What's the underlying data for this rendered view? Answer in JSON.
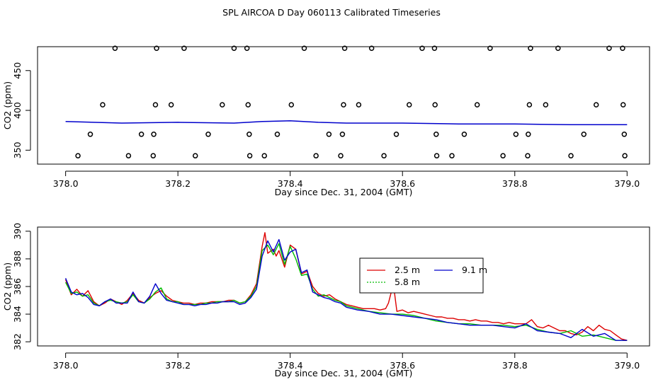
{
  "title": "SPL AIRCOA D  Day 060113  Calibrated Timeseries",
  "chart_data": [
    {
      "type": "scatter",
      "name": "top",
      "xlabel": "Day since Dec. 31, 2004 (GMT)",
      "ylabel": "CO2 (ppm)",
      "xlim": [
        377.95,
        379.04
      ],
      "ylim": [
        332.5,
        480
      ],
      "x_ticks": [
        378.0,
        378.2,
        378.4,
        378.6,
        378.8,
        379.0
      ],
      "x_tick_labels": [
        "378.0",
        "378.2",
        "378.4",
        "378.6",
        "378.8",
        "379.0"
      ],
      "y_ticks": [
        350,
        400,
        450
      ],
      "y_tick_labels": [
        "350",
        "400",
        "450"
      ],
      "calibration_points": [
        {
          "x": 378.088,
          "y": 478
        },
        {
          "x": 378.162,
          "y": 478
        },
        {
          "x": 378.211,
          "y": 478
        },
        {
          "x": 378.3,
          "y": 478
        },
        {
          "x": 378.323,
          "y": 478
        },
        {
          "x": 378.425,
          "y": 478
        },
        {
          "x": 378.497,
          "y": 478
        },
        {
          "x": 378.545,
          "y": 478
        },
        {
          "x": 378.635,
          "y": 478
        },
        {
          "x": 378.657,
          "y": 478
        },
        {
          "x": 378.756,
          "y": 478
        },
        {
          "x": 378.828,
          "y": 478
        },
        {
          "x": 378.877,
          "y": 478
        },
        {
          "x": 378.968,
          "y": 478
        },
        {
          "x": 378.992,
          "y": 478
        },
        {
          "x": 378.066,
          "y": 407
        },
        {
          "x": 378.16,
          "y": 407
        },
        {
          "x": 378.188,
          "y": 407
        },
        {
          "x": 378.279,
          "y": 407
        },
        {
          "x": 378.325,
          "y": 407
        },
        {
          "x": 378.402,
          "y": 407
        },
        {
          "x": 378.495,
          "y": 407
        },
        {
          "x": 378.522,
          "y": 407
        },
        {
          "x": 378.612,
          "y": 407
        },
        {
          "x": 378.658,
          "y": 407
        },
        {
          "x": 378.733,
          "y": 407
        },
        {
          "x": 378.826,
          "y": 407
        },
        {
          "x": 378.855,
          "y": 407
        },
        {
          "x": 378.945,
          "y": 407
        },
        {
          "x": 378.993,
          "y": 407
        },
        {
          "x": 378.044,
          "y": 370
        },
        {
          "x": 378.135,
          "y": 370
        },
        {
          "x": 378.157,
          "y": 370
        },
        {
          "x": 378.254,
          "y": 370
        },
        {
          "x": 378.327,
          "y": 370
        },
        {
          "x": 378.377,
          "y": 370
        },
        {
          "x": 378.469,
          "y": 370
        },
        {
          "x": 378.493,
          "y": 370
        },
        {
          "x": 378.589,
          "y": 370
        },
        {
          "x": 378.66,
          "y": 370
        },
        {
          "x": 378.71,
          "y": 370
        },
        {
          "x": 378.802,
          "y": 370
        },
        {
          "x": 378.824,
          "y": 370
        },
        {
          "x": 378.923,
          "y": 370
        },
        {
          "x": 378.995,
          "y": 370
        },
        {
          "x": 378.022,
          "y": 343
        },
        {
          "x": 378.112,
          "y": 343
        },
        {
          "x": 378.156,
          "y": 343
        },
        {
          "x": 378.231,
          "y": 343
        },
        {
          "x": 378.328,
          "y": 343
        },
        {
          "x": 378.354,
          "y": 343
        },
        {
          "x": 378.446,
          "y": 343
        },
        {
          "x": 378.49,
          "y": 343
        },
        {
          "x": 378.567,
          "y": 343
        },
        {
          "x": 378.661,
          "y": 343
        },
        {
          "x": 378.688,
          "y": 343
        },
        {
          "x": 378.779,
          "y": 343
        },
        {
          "x": 378.823,
          "y": 343
        },
        {
          "x": 378.9,
          "y": 343
        },
        {
          "x": 378.996,
          "y": 343
        }
      ],
      "series": [
        {
          "name": "ambient",
          "color": "#0000cc",
          "x": [
            378.0,
            378.1,
            378.2,
            378.3,
            378.35,
            378.4,
            378.45,
            378.5,
            378.6,
            378.7,
            378.8,
            378.9,
            379.0
          ],
          "y": [
            386,
            384,
            385,
            384,
            386,
            387,
            385,
            384,
            384,
            383,
            383,
            382,
            382
          ]
        }
      ]
    },
    {
      "type": "line",
      "name": "bottom",
      "xlabel": "Day since Dec. 31, 2004 (GMT)",
      "ylabel": "CO2 (ppm)",
      "xlim": [
        377.95,
        379.04
      ],
      "ylim": [
        381.7,
        390.3
      ],
      "x_ticks": [
        378.0,
        378.2,
        378.4,
        378.6,
        378.8,
        379.0
      ],
      "x_tick_labels": [
        "378.0",
        "378.2",
        "378.4",
        "378.6",
        "378.8",
        "379.0"
      ],
      "y_ticks": [
        382,
        384,
        386,
        388,
        390
      ],
      "y_tick_labels": [
        "382",
        "384",
        "386",
        "388",
        "390"
      ],
      "legend": {
        "position": "center-right",
        "entries": [
          {
            "label": "2.5 m",
            "color": "#dd0000"
          },
          {
            "label": "5.8 m",
            "color": "#00bb00"
          },
          {
            "label": "9.1 m",
            "color": "#0000cc"
          }
        ]
      },
      "series": [
        {
          "name": "2.5 m",
          "color": "#dd0000",
          "x": [
            378.0,
            378.01,
            378.02,
            378.03,
            378.04,
            378.05,
            378.06,
            378.07,
            378.08,
            378.09,
            378.1,
            378.11,
            378.12,
            378.13,
            378.14,
            378.15,
            378.16,
            378.17,
            378.18,
            378.19,
            378.2,
            378.21,
            378.22,
            378.23,
            378.24,
            378.25,
            378.26,
            378.27,
            378.28,
            378.29,
            378.3,
            378.31,
            378.32,
            378.33,
            378.34,
            378.35,
            378.355,
            378.36,
            378.37,
            378.375,
            378.38,
            378.39,
            378.4,
            378.41,
            378.42,
            378.43,
            378.44,
            378.45,
            378.46,
            378.47,
            378.48,
            378.49,
            378.5,
            378.51,
            378.52,
            378.53,
            378.54,
            378.55,
            378.56,
            378.57,
            378.575,
            378.58,
            378.585,
            378.59,
            378.6,
            378.61,
            378.62,
            378.63,
            378.64,
            378.65,
            378.66,
            378.67,
            378.68,
            378.69,
            378.7,
            378.71,
            378.72,
            378.73,
            378.74,
            378.75,
            378.76,
            378.77,
            378.78,
            378.79,
            378.8,
            378.81,
            378.82,
            378.83,
            378.84,
            378.85,
            378.86,
            378.87,
            378.88,
            378.89,
            378.9,
            378.91,
            378.92,
            378.93,
            378.94,
            378.95,
            378.96,
            378.97,
            378.98,
            378.99,
            379.0
          ],
          "y": [
            386.5,
            385.4,
            385.8,
            385.3,
            385.7,
            384.9,
            384.6,
            384.8,
            385.1,
            384.9,
            384.7,
            385.0,
            385.5,
            385.0,
            384.8,
            385.2,
            385.5,
            385.7,
            385.3,
            385.0,
            384.9,
            384.8,
            384.8,
            384.7,
            384.8,
            384.8,
            384.9,
            384.9,
            384.9,
            385.0,
            385.0,
            384.8,
            384.9,
            385.4,
            386.2,
            388.9,
            389.9,
            388.4,
            388.7,
            388.2,
            388.6,
            387.4,
            389.0,
            388.7,
            386.9,
            387.1,
            386.0,
            385.5,
            385.3,
            385.4,
            385.1,
            384.9,
            384.7,
            384.6,
            384.5,
            384.4,
            384.4,
            384.4,
            384.3,
            384.4,
            384.8,
            385.6,
            385.8,
            384.2,
            384.3,
            384.1,
            384.2,
            384.1,
            384.0,
            383.9,
            383.8,
            383.8,
            383.7,
            383.7,
            383.6,
            383.6,
            383.5,
            383.6,
            383.5,
            383.5,
            383.4,
            383.4,
            383.3,
            383.4,
            383.3,
            383.3,
            383.3,
            383.6,
            383.1,
            383.0,
            383.2,
            383.0,
            382.8,
            382.8,
            382.6,
            382.5,
            382.7,
            383.1,
            382.8,
            383.2,
            382.9,
            382.8,
            382.5,
            382.2,
            382.1
          ]
        },
        {
          "name": "5.8 m",
          "color": "#00bb00",
          "x": [
            378.0,
            378.01,
            378.02,
            378.03,
            378.04,
            378.05,
            378.06,
            378.07,
            378.08,
            378.09,
            378.1,
            378.11,
            378.12,
            378.13,
            378.14,
            378.15,
            378.16,
            378.17,
            378.18,
            378.19,
            378.2,
            378.21,
            378.22,
            378.23,
            378.24,
            378.25,
            378.26,
            378.27,
            378.28,
            378.29,
            378.3,
            378.31,
            378.32,
            378.33,
            378.34,
            378.35,
            378.36,
            378.37,
            378.38,
            378.39,
            378.4,
            378.41,
            378.42,
            378.43,
            378.44,
            378.45,
            378.46,
            378.47,
            378.48,
            378.49,
            378.5,
            378.52,
            378.54,
            378.56,
            378.58,
            378.6,
            378.62,
            378.64,
            378.66,
            378.68,
            378.7,
            378.72,
            378.74,
            378.76,
            378.78,
            378.8,
            378.82,
            378.84,
            378.86,
            378.88,
            378.9,
            378.92,
            378.94,
            378.96,
            378.98,
            379.0
          ],
          "y": [
            386.3,
            385.5,
            385.6,
            385.3,
            385.4,
            384.8,
            384.6,
            384.9,
            385.0,
            384.9,
            384.8,
            384.9,
            385.4,
            384.9,
            384.8,
            385.1,
            385.6,
            385.9,
            385.1,
            384.9,
            384.9,
            384.7,
            384.7,
            384.7,
            384.7,
            384.8,
            384.8,
            384.9,
            384.9,
            384.9,
            385.0,
            384.8,
            384.9,
            385.3,
            386.0,
            388.6,
            389.0,
            388.3,
            389.1,
            387.6,
            388.9,
            388.0,
            386.8,
            386.9,
            385.8,
            385.3,
            385.4,
            385.2,
            385.0,
            384.9,
            384.6,
            384.4,
            384.2,
            384.1,
            384.0,
            384.0,
            383.9,
            383.7,
            383.5,
            383.4,
            383.3,
            383.3,
            383.2,
            383.2,
            383.2,
            383.1,
            383.2,
            382.9,
            382.7,
            382.6,
            382.8,
            382.4,
            382.5,
            382.3,
            382.1,
            382.1
          ]
        },
        {
          "name": "9.1 m",
          "color": "#0000cc",
          "x": [
            378.0,
            378.01,
            378.02,
            378.03,
            378.04,
            378.05,
            378.06,
            378.07,
            378.08,
            378.09,
            378.1,
            378.11,
            378.12,
            378.13,
            378.14,
            378.15,
            378.16,
            378.17,
            378.18,
            378.19,
            378.2,
            378.21,
            378.22,
            378.23,
            378.24,
            378.25,
            378.26,
            378.27,
            378.28,
            378.29,
            378.3,
            378.31,
            378.32,
            378.33,
            378.34,
            378.35,
            378.36,
            378.37,
            378.38,
            378.39,
            378.4,
            378.41,
            378.42,
            378.43,
            378.44,
            378.45,
            378.46,
            378.47,
            378.48,
            378.49,
            378.5,
            378.52,
            378.54,
            378.56,
            378.58,
            378.6,
            378.62,
            378.64,
            378.66,
            378.68,
            378.7,
            378.72,
            378.74,
            378.76,
            378.78,
            378.8,
            378.82,
            378.84,
            378.86,
            378.88,
            378.9,
            378.92,
            378.94,
            378.96,
            378.98,
            379.0
          ],
          "y": [
            386.6,
            385.6,
            385.4,
            385.5,
            385.2,
            384.7,
            384.6,
            384.9,
            385.1,
            384.8,
            384.8,
            384.8,
            385.6,
            384.9,
            384.8,
            385.3,
            386.2,
            385.5,
            385.0,
            384.9,
            384.8,
            384.7,
            384.7,
            384.6,
            384.7,
            384.7,
            384.8,
            384.8,
            384.9,
            384.9,
            384.9,
            384.7,
            384.8,
            385.2,
            385.8,
            388.2,
            389.3,
            388.5,
            389.4,
            387.9,
            388.5,
            388.7,
            387.0,
            387.2,
            385.6,
            385.4,
            385.2,
            385.1,
            384.9,
            384.8,
            384.5,
            384.3,
            384.2,
            384.0,
            384.0,
            383.9,
            383.8,
            383.7,
            383.6,
            383.4,
            383.3,
            383.2,
            383.2,
            383.2,
            383.1,
            383.0,
            383.3,
            382.8,
            382.7,
            382.6,
            382.3,
            382.9,
            382.4,
            382.6,
            382.1,
            382.1
          ]
        }
      ]
    }
  ]
}
